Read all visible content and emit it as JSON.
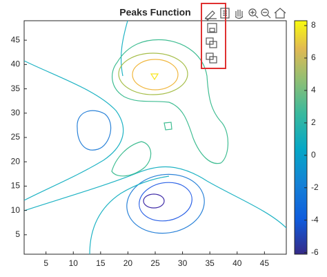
{
  "chart_data": {
    "type": "contour",
    "title": "Peaks Function",
    "xlim": [
      1,
      49
    ],
    "ylim": [
      1,
      49
    ],
    "xticks": [
      5,
      10,
      15,
      20,
      25,
      30,
      35,
      40,
      45
    ],
    "yticks": [
      5,
      10,
      15,
      20,
      25,
      30,
      35,
      40,
      45
    ],
    "levels": [
      -6,
      -4,
      -2,
      0,
      2,
      4,
      6,
      8
    ],
    "level_colors": [
      "#3e2aa6",
      "#2c62e6",
      "#2a82d8",
      "#1fb3c4",
      "#3fbd92",
      "#a6be4a",
      "#f0b73f",
      "#f8e61e"
    ],
    "clim": [
      -6.1,
      8.3
    ],
    "colorbar_ticks": [
      -6,
      -4,
      -2,
      0,
      2,
      4,
      6,
      8
    ]
  }
}
